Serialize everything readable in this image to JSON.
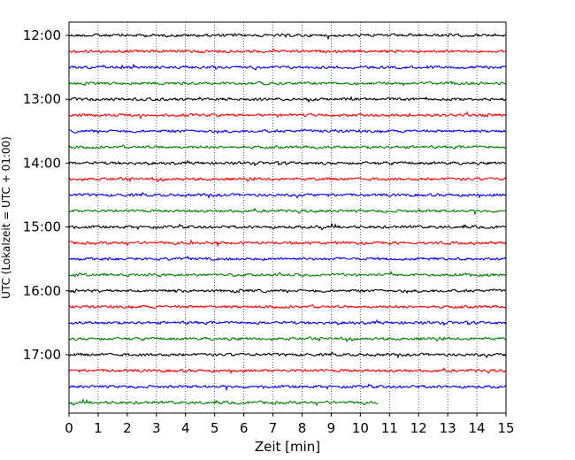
{
  "chart_data": {
    "type": "line",
    "title": "",
    "xlabel": "Zeit  [min]",
    "ylabel": "UTC (Lokalzeit = UTC + 01:00)",
    "xlim": [
      0,
      15
    ],
    "x_ticks": [
      0,
      1,
      2,
      3,
      4,
      5,
      6,
      7,
      8,
      9,
      10,
      11,
      12,
      13,
      14,
      15
    ],
    "x_tick_labels": [
      "0",
      "1",
      "2",
      "3",
      "4",
      "5",
      "6",
      "7",
      "8",
      "9",
      "10",
      "11",
      "12",
      "13",
      "14",
      "15"
    ],
    "y_tick_labels": [
      "12:00",
      "13:00",
      "14:00",
      "15:00",
      "16:00",
      "17:00"
    ],
    "grid": "vertical-dotted",
    "trace_colors": [
      "#000000",
      "#ff0000",
      "#0000ff",
      "#008000"
    ],
    "trace_minutes": 15,
    "last_trace_end_minute": 10.6,
    "traces": [
      {
        "start": "12:00",
        "color": "#000000"
      },
      {
        "start": "12:15",
        "color": "#ff0000"
      },
      {
        "start": "12:30",
        "color": "#0000ff"
      },
      {
        "start": "12:45",
        "color": "#008000"
      },
      {
        "start": "13:00",
        "color": "#000000"
      },
      {
        "start": "13:15",
        "color": "#ff0000"
      },
      {
        "start": "13:30",
        "color": "#0000ff"
      },
      {
        "start": "13:45",
        "color": "#008000"
      },
      {
        "start": "14:00",
        "color": "#000000"
      },
      {
        "start": "14:15",
        "color": "#ff0000"
      },
      {
        "start": "14:30",
        "color": "#0000ff"
      },
      {
        "start": "14:45",
        "color": "#008000"
      },
      {
        "start": "15:00",
        "color": "#000000"
      },
      {
        "start": "15:15",
        "color": "#ff0000"
      },
      {
        "start": "15:30",
        "color": "#0000ff"
      },
      {
        "start": "15:45",
        "color": "#008000"
      },
      {
        "start": "16:00",
        "color": "#000000"
      },
      {
        "start": "16:15",
        "color": "#ff0000"
      },
      {
        "start": "16:30",
        "color": "#0000ff"
      },
      {
        "start": "16:45",
        "color": "#008000"
      },
      {
        "start": "17:00",
        "color": "#000000"
      },
      {
        "start": "17:15",
        "color": "#ff0000"
      },
      {
        "start": "17:30",
        "color": "#0000ff"
      },
      {
        "start": "17:45",
        "color": "#008000"
      }
    ]
  }
}
